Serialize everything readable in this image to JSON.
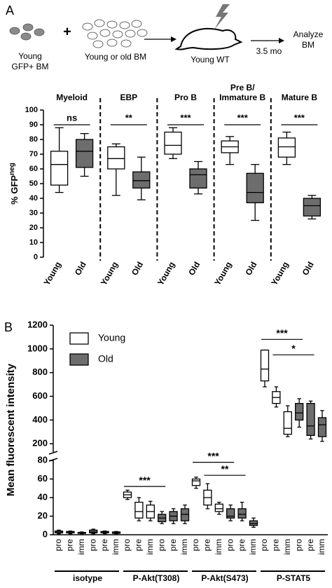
{
  "schematic": {
    "panel_label": "A",
    "donor1": [
      "Young",
      "GFP+ BM"
    ],
    "plus": "+",
    "donor2": "Young or old BM",
    "recipient": "Young WT",
    "time": "3.5 mo",
    "readout": [
      "Analyze",
      "BM"
    ]
  },
  "chart_data": [
    {
      "type": "box",
      "ylabel": "% GFP",
      "ylabel_sup": "neg",
      "ylim": [
        0,
        100
      ],
      "yticks": [
        0,
        10,
        20,
        30,
        40,
        50,
        60,
        70,
        80,
        90,
        100
      ],
      "series": [
        {
          "name": "Young",
          "color": "#ffffff"
        },
        {
          "name": "Old",
          "color": "#6d6d6d"
        }
      ],
      "groups": [
        {
          "label": [
            "Myeloid"
          ],
          "significance": "ns",
          "categories": [
            "Young",
            "Old"
          ],
          "boxes": [
            [
              44,
              49,
              63,
              72,
              88
            ],
            [
              55,
              61,
              72,
              80,
              84
            ]
          ]
        },
        {
          "label": [
            "EBP"
          ],
          "significance": "**",
          "categories": [
            "Young",
            "Old"
          ],
          "boxes": [
            [
              42,
              60,
              67,
              75,
              77
            ],
            [
              39,
              47,
              52,
              58,
              68
            ]
          ]
        },
        {
          "label": [
            "Pro B"
          ],
          "significance": "***",
          "categories": [
            "Young",
            "Old"
          ],
          "boxes": [
            [
              67,
              70,
              76,
              85,
              88
            ],
            [
              43,
              47,
              56,
              60,
              65
            ]
          ]
        },
        {
          "label": [
            "Pre B/",
            "Immature B"
          ],
          "significance": "***",
          "categories": [
            "Young",
            "Old"
          ],
          "boxes": [
            [
              63,
              71,
              75,
              79,
              82
            ],
            [
              25,
              37,
              44,
              57,
              63
            ]
          ]
        },
        {
          "label": [
            "Mature B"
          ],
          "significance": "***",
          "categories": [
            "Young",
            "Old"
          ],
          "boxes": [
            [
              63,
              68,
              75,
              81,
              85
            ],
            [
              26,
              28,
              35,
              40,
              42
            ]
          ]
        }
      ]
    },
    {
      "type": "box",
      "panel_label": "B",
      "ylabel": "Mean fluorescent intensity",
      "ylim": [
        0,
        80
      ],
      "yticks": [
        0,
        20,
        40,
        60,
        80
      ],
      "ylim_upper": [
        130,
        1200
      ],
      "yticks_upper": [
        200,
        400,
        600,
        800,
        1000,
        1200
      ],
      "series": [
        {
          "name": "Young",
          "color": "#ffffff"
        },
        {
          "name": "Old",
          "color": "#6d6d6d"
        }
      ],
      "groups": [
        {
          "label": "isotype",
          "categories": [
            "pro",
            "pre",
            "imm",
            "pro",
            "pre",
            "imm"
          ],
          "boxes": [
            [
              1,
              2,
              3,
              4,
              5
            ],
            [
              1,
              2,
              3,
              3.5,
              4
            ],
            [
              1,
              1.5,
              2,
              2.5,
              3
            ],
            [
              1,
              2,
              3,
              5,
              6
            ],
            [
              1,
              2,
              3,
              3.5,
              4
            ],
            [
              1,
              1.5,
              2.5,
              3,
              3.5
            ]
          ]
        },
        {
          "label": "P-Akt(T308)",
          "categories": [
            "pro",
            "pre",
            "imm",
            "pro",
            "pre",
            "imm"
          ],
          "boxes": [
            [
              38,
              40,
              43,
              46,
              48
            ],
            [
              15,
              18,
              25,
              35,
              40
            ],
            [
              15,
              18,
              25,
              32,
              36
            ],
            [
              12,
              14,
              18,
              22,
              25
            ],
            [
              12,
              15,
              20,
              25,
              28
            ],
            [
              12,
              15,
              22,
              28,
              32
            ]
          ]
        },
        {
          "label": "P-Akt(S473)",
          "categories": [
            "pro",
            "pre",
            "imm",
            "pro",
            "pre",
            "imm"
          ],
          "boxes": [
            [
              50,
              53,
              58,
              60,
              62
            ],
            [
              28,
              32,
              40,
              48,
              55
            ],
            [
              22,
              25,
              28,
              33,
              35
            ],
            [
              15,
              18,
              20,
              28,
              32
            ],
            [
              15,
              18,
              22,
              28,
              35
            ],
            [
              8,
              10,
              12,
              15,
              18
            ]
          ]
        },
        {
          "label": "P-STAT5",
          "categories": [
            "pro",
            "pre",
            "imm",
            "pro",
            "pre",
            "imm"
          ],
          "boxes": [
            [
              680,
              730,
              830,
              990,
              990
            ],
            [
              510,
              540,
              590,
              640,
              680
            ],
            [
              260,
              280,
              330,
              470,
              520
            ],
            [
              340,
              400,
              460,
              540,
              580
            ],
            [
              240,
              270,
              350,
              540,
              560
            ],
            [
              220,
              260,
              360,
              420,
              480
            ]
          ]
        }
      ],
      "annotations": [
        {
          "text": "***",
          "group": 1,
          "from": 0,
          "to": 3,
          "y": 52
        },
        {
          "text": "***",
          "group": 2,
          "from": 0,
          "to": 3,
          "y": 78
        },
        {
          "text": "**",
          "group": 2,
          "from": 1,
          "to": 4,
          "y": 64
        },
        {
          "text": "***",
          "group": 3,
          "from": 0,
          "to": 3,
          "y": 1080
        },
        {
          "text": "*",
          "group": 3,
          "from": 1,
          "to": 4,
          "y": 950
        }
      ]
    }
  ]
}
